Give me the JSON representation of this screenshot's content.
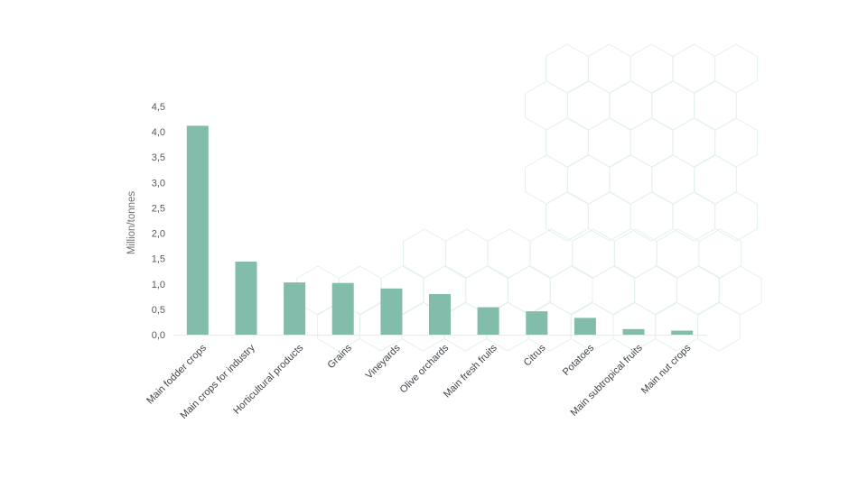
{
  "chart_data": {
    "type": "bar",
    "title": "",
    "xlabel": "",
    "ylabel": "Million/tonnes",
    "ylim": [
      0,
      4.5
    ],
    "yticks": [
      "0,0",
      "0,5",
      "1,0",
      "1,5",
      "2,0",
      "2,5",
      "3,0",
      "3,5",
      "4,0",
      "4,5"
    ],
    "categories": [
      "Main fodder crops",
      "Main crops for industry",
      "Horticultural products",
      "Grains",
      "Vineyards",
      "Olive orchards",
      "Main fresh fruits",
      "Citrus",
      "Potatoes",
      "Main subtropical fruits",
      "Main nut crops"
    ],
    "values": [
      4.12,
      1.44,
      1.03,
      1.02,
      0.91,
      0.8,
      0.54,
      0.46,
      0.33,
      0.11,
      0.08
    ],
    "bar_color": "#82bcab",
    "decoration_color": "#e3f1ec",
    "grid": false,
    "legend": "none"
  }
}
